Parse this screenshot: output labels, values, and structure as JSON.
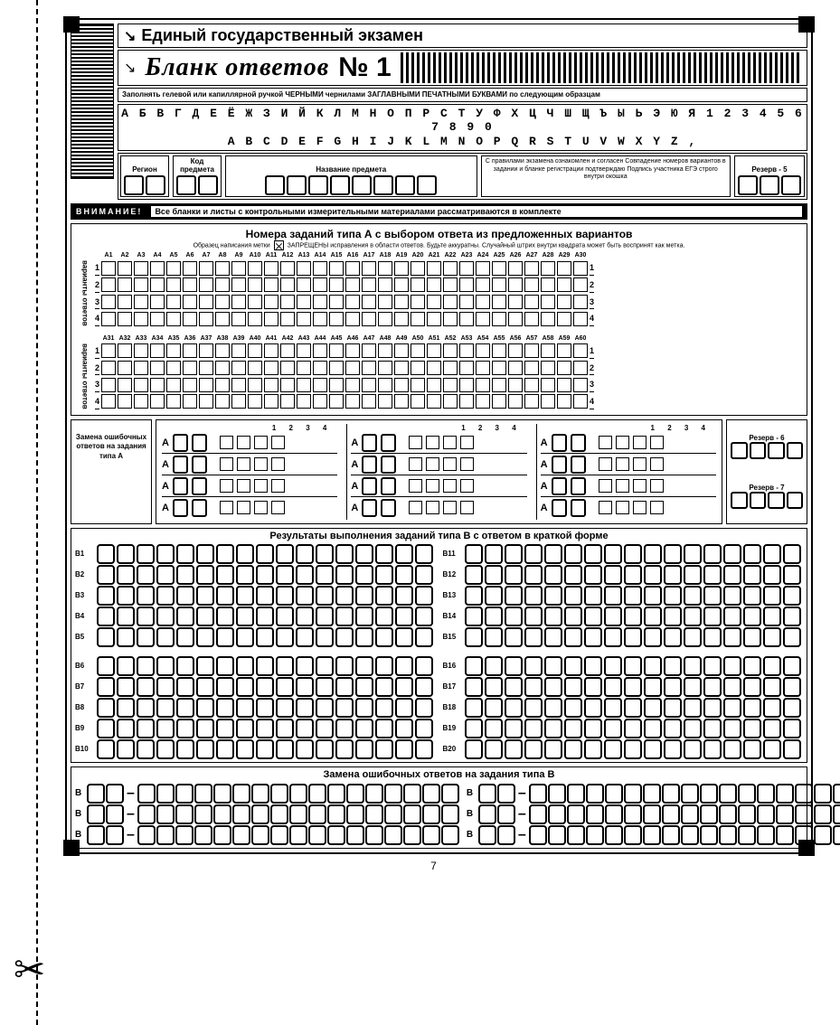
{
  "page_number": "7",
  "header": {
    "main_title": "Единый государственный экзамен",
    "form_title": "Бланк ответов",
    "form_number": "№ 1",
    "instructions": "Заполнять гелевой или капиллярной ручкой ЧЕРНЫМИ чернилами ЗАГЛАВНЫМИ ПЕЧАТНЫМИ БУКВАМИ по следующим образцам",
    "alpha_ru": "А Б В Г Д Е Ё Ж З И Й К Л М Н О П Р С Т У Ф Х Ц Ч Ш Щ Ъ Ы Ь Э Ю Я 1 2 3 4 5 6 7 8 9 0",
    "alpha_en": "A B C D E F G H I J K L M N O P Q R S T U V W X Y Z ,",
    "fields": {
      "region": {
        "label": "Регион",
        "boxes": 2
      },
      "subject_code": {
        "label": "Код\nпредмета",
        "boxes": 2
      },
      "subject_name": {
        "label": "Название предмета",
        "boxes": 8
      },
      "signature": "С правилами экзамена ознакомлен и согласен\nСовпадение номеров вариантов в задании\nи бланке регистрации подтверждаю\nПодпись участника ЕГЭ строго внутри окошка",
      "reserve5": {
        "label": "Резерв - 5",
        "boxes": 3
      }
    }
  },
  "attention": {
    "label": "ВНИМАНИЕ!",
    "text": "Все бланки и листы с контрольными измерительными материалами рассматриваются в комплекте"
  },
  "sectionA": {
    "title": "Номера заданий типа А с выбором ответа из предложенных вариантов",
    "sample_label": "Образец написания метки",
    "warning": "ЗАПРЕЩЕНЫ исправления в области ответов.\nБудьте аккуратны. Случайный штрих внутри квадрата может быть воспринят как метка.",
    "cols1": [
      "А1",
      "А2",
      "А3",
      "А4",
      "А5",
      "А6",
      "А7",
      "А8",
      "А9",
      "А10",
      "А11",
      "А12",
      "А13",
      "А14",
      "А15",
      "А16",
      "А17",
      "А18",
      "А19",
      "А20",
      "А21",
      "А22",
      "А23",
      "А24",
      "А25",
      "А26",
      "А27",
      "А28",
      "А29",
      "А30"
    ],
    "cols2": [
      "А31",
      "А32",
      "А33",
      "А34",
      "А35",
      "А36",
      "А37",
      "А38",
      "А39",
      "А40",
      "А41",
      "А42",
      "А43",
      "А44",
      "А45",
      "А46",
      "А47",
      "А48",
      "А49",
      "А50",
      "А51",
      "А52",
      "А53",
      "А54",
      "А55",
      "А56",
      "А57",
      "А58",
      "А59",
      "А60"
    ],
    "rows": [
      "1",
      "2",
      "3",
      "4"
    ],
    "side_label": "варианты\nответов"
  },
  "correctionA": {
    "title": "Замена\nошибочных\nответов\nна задания\nтипа А",
    "col_header": "1  2  3  4",
    "letter": "А",
    "reserve6": "Резерв - 6",
    "reserve7": "Резерв - 7"
  },
  "sectionB": {
    "title": "Результаты выполнения заданий типа В с ответом в краткой форме",
    "left_labels": [
      "В1",
      "В2",
      "В3",
      "В4",
      "В5",
      "В6",
      "В7",
      "В8",
      "В9",
      "В10"
    ],
    "right_labels": [
      "В11",
      "В12",
      "В13",
      "В14",
      "В15",
      "В16",
      "В17",
      "В18",
      "В19",
      "В20"
    ],
    "cells": 17
  },
  "correctionB": {
    "title": "Замена ошибочных ответов на задания типа В",
    "letter": "В",
    "rows_per_col": 3,
    "num_boxes": 2,
    "ans_boxes": 17
  },
  "colors": {
    "ink": "#000000",
    "paper": "#ffffff"
  }
}
